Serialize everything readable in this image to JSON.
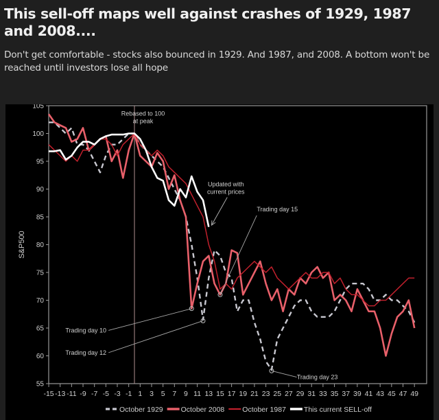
{
  "header": {
    "title": "This sell-off maps well against crashes of 1929, 1987 and 2008....",
    "subtitle": "Don't get comfortable - stocks also bounced in 1929. And 1987, and 2008. A bottom won't be reached until investors lose all hope"
  },
  "chart_data": {
    "type": "line",
    "title": "",
    "xlabel": "",
    "ylabel": "S&P500",
    "xlim": [
      -15,
      50
    ],
    "ylim": [
      55,
      105
    ],
    "yticks": [
      55,
      60,
      65,
      70,
      75,
      80,
      85,
      90,
      95,
      100,
      105
    ],
    "xticks": [
      -15,
      -13,
      -11,
      -9,
      -7,
      -5,
      -3,
      -1,
      1,
      3,
      5,
      7,
      9,
      11,
      13,
      15,
      17,
      19,
      21,
      23,
      25,
      27,
      29,
      31,
      33,
      35,
      37,
      39,
      41,
      43,
      45,
      47,
      49
    ],
    "grid": false,
    "legend_position": "bottom",
    "x_start": -15,
    "reference_line_x": 0,
    "series": [
      {
        "name": "October 1929",
        "color": "#c8c8d0",
        "style": "dashed",
        "values": [
          102,
          102,
          101,
          100,
          101,
          98,
          98,
          97,
          95,
          93,
          96,
          98,
          98,
          99,
          100,
          100,
          98,
          97,
          96,
          95,
          94,
          92,
          90,
          88,
          85,
          80,
          74,
          66.5,
          74,
          79,
          78,
          75,
          74,
          68,
          70,
          70,
          66,
          63,
          59,
          57.5,
          63,
          65,
          67,
          69,
          70,
          70,
          68,
          67,
          67,
          67,
          68,
          70,
          72,
          73,
          73,
          73,
          72,
          70,
          70,
          71,
          70,
          70,
          69,
          68,
          66
        ]
      },
      {
        "name": "October 2008",
        "color": "#e8606a",
        "style": "solid-thick",
        "values": [
          103.5,
          102,
          101.5,
          101,
          98.5,
          99,
          101,
          97,
          98,
          99,
          99.5,
          95,
          97,
          92,
          97,
          100,
          96,
          95,
          94,
          96.5,
          95,
          90,
          92.5,
          88,
          85,
          68.5,
          73,
          77,
          78,
          73,
          71,
          73,
          79,
          78.5,
          71,
          73,
          75,
          77,
          73,
          70,
          72,
          68,
          72,
          71,
          74,
          73,
          75,
          76,
          74,
          75,
          70,
          71,
          70,
          68,
          72,
          70,
          68,
          68,
          65,
          60,
          64,
          67,
          68,
          70,
          65
        ]
      },
      {
        "name": "October 1987",
        "color": "#c0202c",
        "style": "solid-thin",
        "values": [
          98,
          97,
          96,
          95,
          96,
          95,
          97,
          97,
          98,
          99,
          99,
          98,
          96,
          98,
          99,
          100,
          98,
          97,
          96,
          97,
          96,
          94,
          93,
          92,
          91,
          89,
          87,
          85,
          80,
          77,
          72,
          73,
          72,
          74,
          75,
          76,
          77,
          76,
          75,
          76,
          74,
          73,
          72,
          73,
          74,
          75,
          74,
          74,
          75,
          75,
          73,
          74,
          72,
          71,
          71,
          70,
          69,
          69,
          70,
          70,
          71,
          72,
          73,
          74,
          74
        ]
      },
      {
        "name": "This current SELL-off",
        "color": "#ffffff",
        "style": "solid-thick",
        "values": [
          96.8,
          96.8,
          97,
          95.3,
          96,
          97.5,
          98.5,
          98.5,
          98,
          99,
          99.5,
          99.8,
          99.8,
          99.8,
          100,
          100,
          99,
          97,
          94,
          92,
          91.5,
          88,
          87,
          90,
          88.5,
          92.3,
          89.5,
          88,
          83.2
        ]
      }
    ],
    "annotations": [
      {
        "text": "Rebased to 100",
        "text2": "at peak",
        "x": 1.5,
        "y": 103.2
      },
      {
        "text": "Updated with",
        "text2": "current prices",
        "x": 16,
        "y": 90.5,
        "arrow_to": [
          13.5,
          83.5
        ]
      },
      {
        "text": "Trading day 10",
        "x": -8.5,
        "y": 64.2,
        "marker": [
          10,
          68.5
        ]
      },
      {
        "text": "Trading day 12",
        "x": -8.5,
        "y": 60.2,
        "marker": [
          12,
          66.3
        ]
      },
      {
        "text": "Trading day 15",
        "x": 25,
        "y": 86,
        "marker": [
          15,
          71
        ]
      },
      {
        "text": "Trading day 23",
        "x": 32,
        "y": 55.8,
        "marker": [
          24,
          57.3
        ]
      }
    ]
  }
}
